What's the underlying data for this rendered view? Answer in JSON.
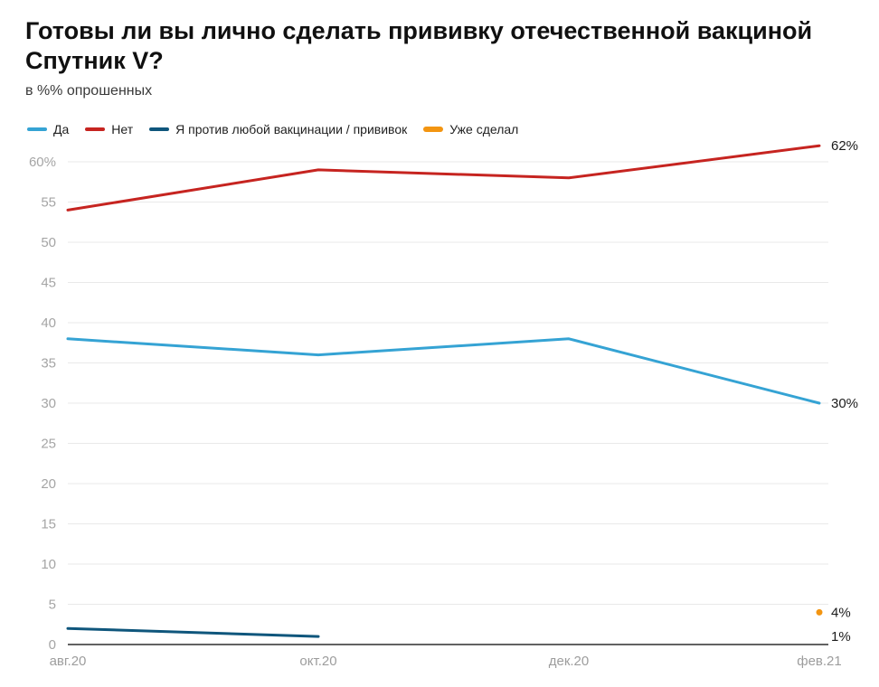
{
  "header": {
    "title": "Готовы ли вы лично сделать прививку отечественной вакциной\nСпутник V?",
    "subtitle": "в %% опрошенных"
  },
  "legend": {
    "items": [
      {
        "label": "Да",
        "color": "#35a3d4",
        "thick": false
      },
      {
        "label": "Нет",
        "color": "#c62420",
        "thick": false
      },
      {
        "label": "Я против любой вакцинации / прививок",
        "color": "#0f567c",
        "thick": false
      },
      {
        "label": "Уже сделал",
        "color": "#f39511",
        "thick": true
      }
    ]
  },
  "chart_data": {
    "type": "line",
    "categories": [
      "авг.20",
      "окт.20",
      "дек.20",
      "фев.21"
    ],
    "series": [
      {
        "name": "Да",
        "color": "#35a3d4",
        "values": [
          38,
          36,
          38,
          30
        ],
        "end_label": "30%"
      },
      {
        "name": "Нет",
        "color": "#c62420",
        "values": [
          54,
          59,
          58,
          62
        ],
        "end_label": "62%"
      },
      {
        "name": "Я против любой вакцинации / прививок",
        "color": "#0f567c",
        "values": [
          2,
          1,
          null,
          null
        ],
        "end_label": "1%",
        "end_label_value": 1
      },
      {
        "name": "Уже сделал",
        "color": "#f39511",
        "values": [
          null,
          null,
          null,
          4
        ],
        "marker": "dot",
        "end_label": "4%"
      }
    ],
    "title": "Готовы ли вы лично сделать прививку отечественной вакциной Спутник V?",
    "subtitle": "в %% опрошенных",
    "xlabel": "",
    "ylabel": "",
    "ylim": [
      0,
      62
    ],
    "yticks": [
      0,
      5,
      10,
      15,
      20,
      25,
      30,
      35,
      40,
      45,
      50,
      55,
      60
    ],
    "ytick_labels": [
      "0",
      "5",
      "10",
      "15",
      "20",
      "25",
      "30",
      "35",
      "40",
      "45",
      "50",
      "55",
      "60%"
    ],
    "grid": true,
    "legend_position": "top"
  },
  "colors": {
    "gridline": "#e9e9e9",
    "zero_axis": "#2e2e2e",
    "y_tick_text": "#a5a5a5",
    "x_tick_text": "#9d9d9d",
    "end_label_text": "#1b1b1b"
  }
}
